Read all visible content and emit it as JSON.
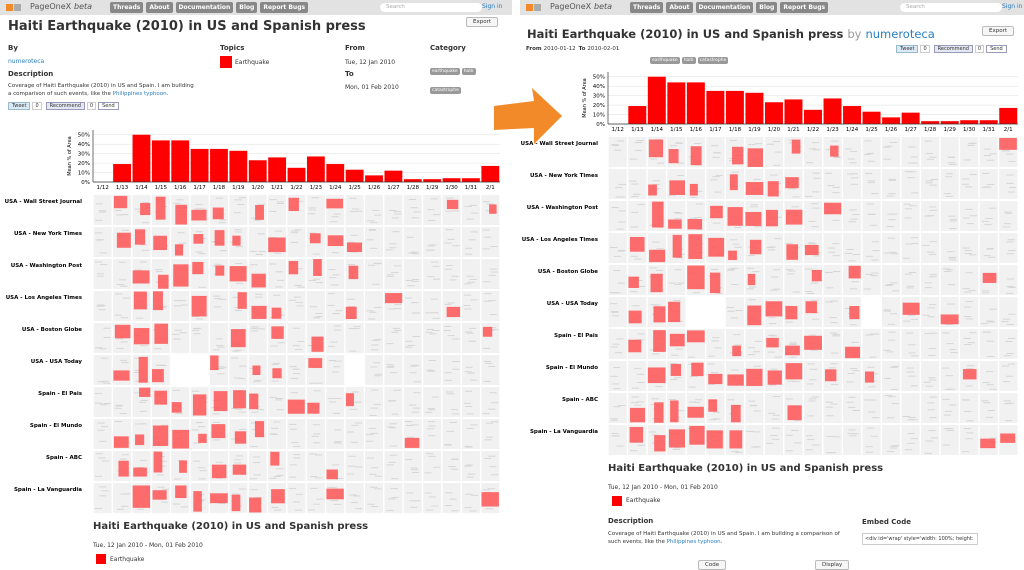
{
  "nav": {
    "brand": "PageOneX",
    "beta": "beta",
    "links": [
      "Threads",
      "About",
      "Documentation",
      "Blog",
      "Report Bugs"
    ],
    "search": "Search",
    "signin": "Sign in"
  },
  "thread": {
    "title": "Haiti Earthquake (2010) in US and Spanish press",
    "by_word": "by",
    "author": "numeroteca",
    "by_heading": "By",
    "topics_heading": "Topics",
    "from_heading": "From",
    "from": "Tue, 12 Jan 2010",
    "to_heading": "To",
    "to": "Mon, 01 Feb 2010",
    "category_heading": "Category",
    "tags": [
      "earthquake",
      "haiti",
      "catastrophe"
    ],
    "description_heading": "Description",
    "description": "Coverage of Haiti Earthquake (2010) in US and Spain. I am building a comparison of such events, like the",
    "description_link": "Philippines typhoon",
    "description_end": ".",
    "export": "Export",
    "tweet": "Tweet",
    "tweet_count": "0",
    "recommend": "Recommend",
    "recommend_count": "0",
    "send": "Send",
    "date_range": "Tue, 12 Jan 2010 - Mon, 01 Feb 2010",
    "short_from_label": "From",
    "short_from": "2010-01-12",
    "short_to_label": "To",
    "short_to": "2010-02-01",
    "embed_heading": "Embed Code",
    "embed_code": "<div id='wrap' style='width: 100%; height:",
    "code_button": "Code",
    "display_button": "Display",
    "newspapers": [
      "USA - Wall Street Journal",
      "USA - New York Times",
      "USA - Washington Post",
      "USA - Los Angeles Times",
      "USA - Boston Globe",
      "USA - USA Today",
      "Spain - El Pais",
      "Spain - El Mundo",
      "Spain - ABC",
      "Spain - La Vanguardia"
    ]
  },
  "chart_data": {
    "type": "bar",
    "y_label": "Mean % of Area",
    "categories": [
      "1/12",
      "1/13",
      "1/14",
      "1/15",
      "1/16",
      "1/17",
      "1/18",
      "1/19",
      "1/20",
      "1/21",
      "1/22",
      "1/23",
      "1/24",
      "1/25",
      "1/26",
      "1/27",
      "1/28",
      "1/29",
      "1/30",
      "1/31",
      "2/1"
    ],
    "series": [
      {
        "name": "Earthquake",
        "color": "#ff0000",
        "values": [
          0,
          19,
          50,
          44,
          44,
          35,
          35,
          33,
          23,
          26,
          15,
          27,
          19,
          13,
          7,
          12,
          3,
          3,
          4,
          4,
          17
        ]
      }
    ],
    "ylim": [
      0,
      55
    ],
    "yticks": [
      {
        "value": 0,
        "label": "0%"
      },
      {
        "value": 10,
        "label": "10%"
      },
      {
        "value": 20,
        "label": "20%"
      },
      {
        "value": 30,
        "label": "30%"
      },
      {
        "value": 40,
        "label": "40%"
      },
      {
        "value": 50,
        "label": "50%"
      }
    ],
    "grid": true
  }
}
